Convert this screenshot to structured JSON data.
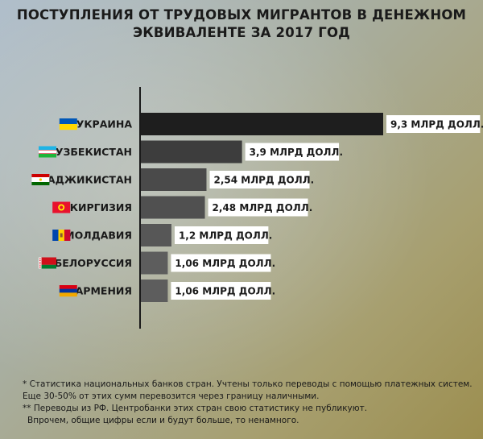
{
  "title_lines": [
    "ПОСТУПЛЕНИЯ ОТ ТРУДОВЫХ МИГРАНТОВ В ДЕНЕЖНОМ",
    "ЭКВИВАЛЕНТЕ ЗА 2017 ГОД"
  ],
  "chart_data": {
    "type": "bar",
    "orientation": "horizontal",
    "title": "ПОСТУПЛЕНИЯ ОТ ТРУДОВЫХ МИГРАНТОВ В ДЕНЕЖНОМ ЭКВИВАЛЕНТЕ ЗА 2017 ГОД",
    "categories": [
      "УКРАИНА",
      "УЗБЕКИСТАН",
      "ТАДЖИКИСТАН",
      "КИРГИЗИЯ",
      "МОЛДАВИЯ",
      "БЕЛОРУССИЯ",
      "АРМЕНИЯ"
    ],
    "values": [
      9.3,
      3.9,
      2.54,
      2.48,
      1.2,
      1.06,
      1.06
    ],
    "value_labels": [
      "9,3 МЛРД ДОЛЛ.",
      "3,9 МЛРД ДОЛЛ.",
      "2,54 МЛРД ДОЛЛ.",
      "2,48 МЛРД ДОЛЛ.",
      "1,2 МЛРД ДОЛЛ.",
      "1,06 МЛРД ДОЛЛ.",
      "1,06 МЛРД ДОЛЛ."
    ],
    "flags": [
      "ukraine-flag-icon",
      "uzbekistan-flag-icon",
      "tajikistan-flag-icon",
      "kyrgyzstan-flag-icon",
      "moldova-flag-icon",
      "belarus-flag-icon",
      "armenia-flag-icon"
    ],
    "bar_colors": [
      "#1e1e1e",
      "#3d3d3d",
      "#4a4a4a",
      "#505050",
      "#575757",
      "#5d5d5d",
      "#5d5d5d"
    ],
    "xlabel": "",
    "ylabel": "",
    "grid": false
  },
  "footnotes": [
    "* Статистика национальных банков стран. Учтены только переводы с помощью платежных систем.",
    "Еще 30-50% от этих сумм перевозится через границу наличными.",
    "** Переводы из РФ. Центробанки этих стран свою статистику не публикуют.",
    "Впрочем, общие цифры если и будут больше, то ненамного."
  ]
}
